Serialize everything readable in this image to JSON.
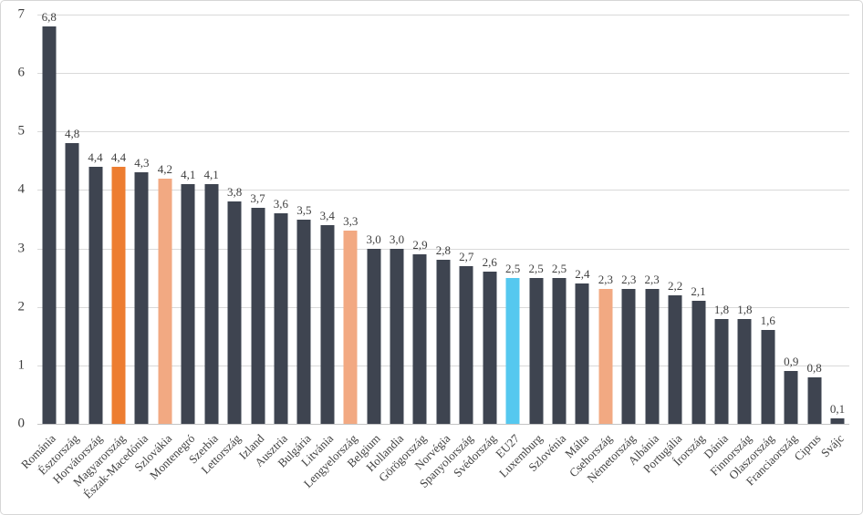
{
  "chart_data": {
    "type": "bar",
    "title": "",
    "xlabel": "",
    "ylabel": "",
    "ylim": [
      0,
      7
    ],
    "yticks": [
      0,
      1,
      2,
      3,
      4,
      5,
      6,
      7
    ],
    "grid": true,
    "legend": false,
    "decimal_separator": ",",
    "categories": [
      "Románia",
      "Észtország",
      "Horvátország",
      "Magyarország",
      "Észak-Macedónia",
      "Szlovákia",
      "Montenegró",
      "Szerbia",
      "Lettország",
      "Izland",
      "Ausztria",
      "Bulgária",
      "Litvánia",
      "Lengyelország",
      "Belgium",
      "Hollandia",
      "Görögország",
      "Norvégia",
      "Spanyolország",
      "Svédország",
      "EU27",
      "Luxemburg",
      "Szlovénia",
      "Málta",
      "Csehország",
      "Németország",
      "Albánia",
      "Portugália",
      "Írország",
      "Dánia",
      "Finnország",
      "Olaszország",
      "Franciaország",
      "Ciprus",
      "Svájc"
    ],
    "values": [
      6.8,
      4.8,
      4.4,
      4.4,
      4.3,
      4.2,
      4.1,
      4.1,
      3.8,
      3.7,
      3.6,
      3.5,
      3.4,
      3.3,
      3.0,
      3.0,
      2.9,
      2.8,
      2.7,
      2.6,
      2.5,
      2.5,
      2.5,
      2.4,
      2.3,
      2.3,
      2.3,
      2.2,
      2.1,
      1.8,
      1.8,
      1.6,
      0.9,
      0.8,
      0.1
    ],
    "value_labels": [
      "6,8",
      "4,8",
      "4,4",
      "4,4",
      "4,3",
      "4,2",
      "4,1",
      "4,1",
      "3,8",
      "3,7",
      "3,6",
      "3,5",
      "3,4",
      "3,3",
      "3,0",
      "3,0",
      "2,9",
      "2,8",
      "2,7",
      "2,6",
      "2,5",
      "2,5",
      "2,5",
      "2,4",
      "2,3",
      "2,3",
      "2,3",
      "2,2",
      "2,1",
      "1,8",
      "1,8",
      "1,6",
      "0,9",
      "0,8",
      "0,1"
    ],
    "bar_colors": [
      "dark",
      "dark",
      "dark",
      "orange",
      "dark",
      "light_orange",
      "dark",
      "dark",
      "dark",
      "dark",
      "dark",
      "dark",
      "dark",
      "light_orange",
      "dark",
      "dark",
      "dark",
      "dark",
      "dark",
      "dark",
      "blue",
      "dark",
      "dark",
      "dark",
      "light_orange",
      "dark",
      "dark",
      "dark",
      "dark",
      "dark",
      "dark",
      "dark",
      "dark",
      "dark",
      "dark"
    ],
    "palette": {
      "dark": "#3e4450",
      "orange": "#ed7d31",
      "light_orange": "#f2a982",
      "blue": "#55c8ef"
    },
    "gridline_color": "#d9d9d9",
    "axis_line_color": "#c4c4c4"
  }
}
